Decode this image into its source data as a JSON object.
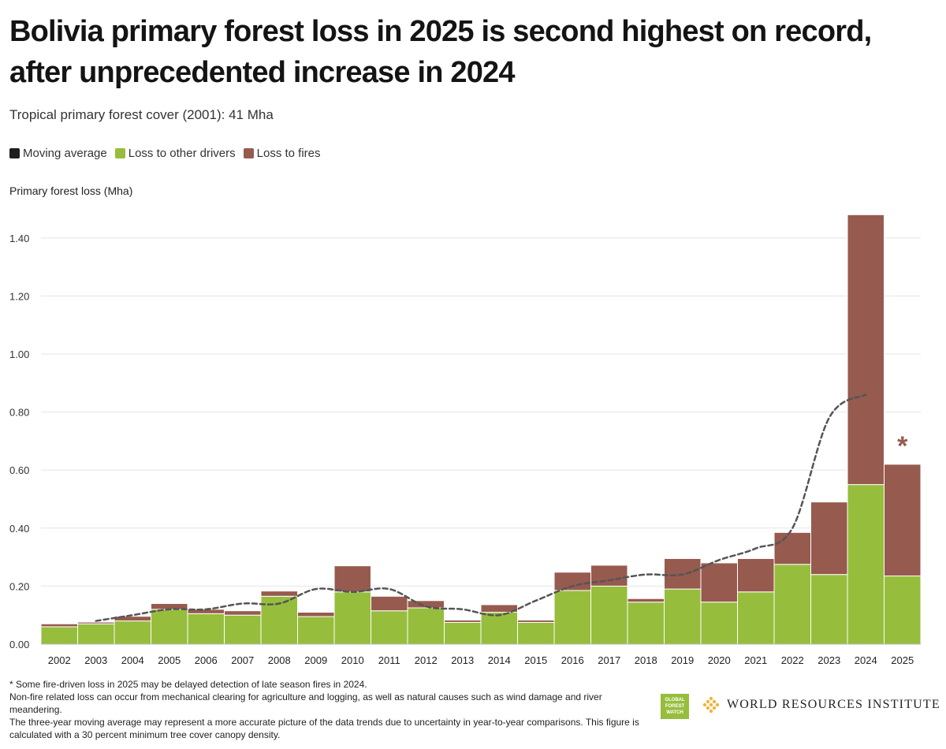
{
  "header": {
    "title": "Bolivia primary forest loss in 2025 is second highest on record, after unprecedented increase in 2024",
    "subtitle": "Tropical primary forest cover (2001): 41 Mha"
  },
  "legend": [
    {
      "label": "Moving average",
      "color": "#1e1e1e"
    },
    {
      "label": "Loss to other drivers",
      "color": "#97bd3d"
    },
    {
      "label": "Loss to fires",
      "color": "#975a4f"
    }
  ],
  "chart_data": {
    "type": "bar",
    "stacked": true,
    "ylabel": "Primary forest loss (Mha)",
    "ylim": [
      0,
      1.5
    ],
    "yticks": [
      "0.00",
      "0.20",
      "0.40",
      "0.60",
      "0.80",
      "1.00",
      "1.20",
      "1.40"
    ],
    "grid": true,
    "legend_position": "top-left",
    "categories": [
      "2002",
      "2003",
      "2004",
      "2005",
      "2006",
      "2007",
      "2008",
      "2009",
      "2010",
      "2011",
      "2012",
      "2013",
      "2014",
      "2015",
      "2016",
      "2017",
      "2018",
      "2019",
      "2020",
      "2021",
      "2022",
      "2023",
      "2024",
      "2025"
    ],
    "series": [
      {
        "name": "Loss to other drivers",
        "color": "#97bd3d",
        "values": [
          0.06,
          0.07,
          0.08,
          0.12,
          0.105,
          0.1,
          0.165,
          0.095,
          0.18,
          0.115,
          0.125,
          0.075,
          0.11,
          0.075,
          0.185,
          0.2,
          0.145,
          0.19,
          0.145,
          0.18,
          0.275,
          0.24,
          0.55,
          0.235
        ]
      },
      {
        "name": "Loss to fires",
        "color": "#975a4f",
        "values": [
          0.01,
          0.006,
          0.016,
          0.02,
          0.015,
          0.015,
          0.018,
          0.015,
          0.09,
          0.05,
          0.025,
          0.008,
          0.026,
          0.008,
          0.063,
          0.072,
          0.012,
          0.105,
          0.135,
          0.115,
          0.11,
          0.25,
          0.93,
          0.385
        ]
      },
      {
        "name": "Moving average",
        "color": "#555555",
        "style": "dashed",
        "x": [
          "2003",
          "2004",
          "2005",
          "2006",
          "2007",
          "2008",
          "2009",
          "2010",
          "2011",
          "2012",
          "2013",
          "2014",
          "2015",
          "2016",
          "2017",
          "2018",
          "2019",
          "2020",
          "2021",
          "2022",
          "2023",
          "2024"
        ],
        "values": [
          0.08,
          0.1,
          0.12,
          0.12,
          0.14,
          0.14,
          0.19,
          0.18,
          0.19,
          0.13,
          0.12,
          0.1,
          0.15,
          0.2,
          0.22,
          0.24,
          0.24,
          0.29,
          0.33,
          0.4,
          0.78,
          0.86
        ]
      }
    ],
    "annotations": [
      {
        "category": "2025",
        "text": "*",
        "color": "#975a4f"
      }
    ]
  },
  "footnotes": [
    "* Some fire-driven loss in 2025 may be delayed detection of late season fires in 2024.",
    "Non-fire related loss can occur from mechanical clearing for agriculture and logging, as well as natural causes such as wind damage and river meandering.",
    "The three-year moving average may represent a more accurate picture of the data trends due to uncertainty in year-to-year comparisons. This figure is calculated with a 30 percent minimum tree cover canopy density."
  ],
  "logos": {
    "gfw_text": "GLOBAL FOREST WATCH",
    "wri_text": "WORLD RESOURCES INSTITUTE"
  }
}
